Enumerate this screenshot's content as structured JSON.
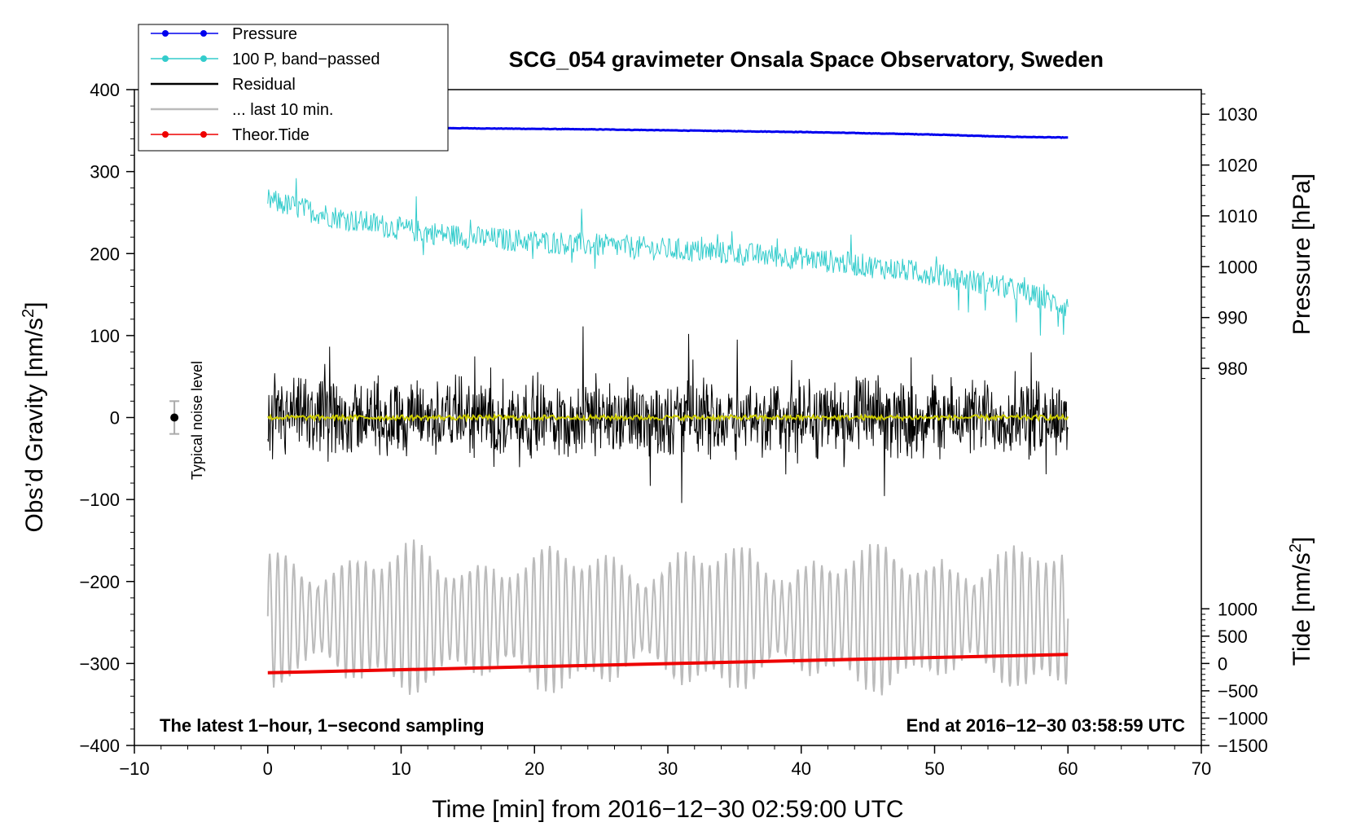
{
  "chart_data": {
    "type": "line",
    "title": "SCG_054 gravimeter Onsala Space Observatory, Sweden",
    "xlabel": "Time [min] from 2016−12−30 02:59:00 UTC",
    "ylabel": "Obs’d Gravity [nm/s²]",
    "ylabel_main": "Obs’d Gravity [nm/s",
    "ylabel_sup": "2",
    "ylabel_end": "]",
    "xlim": [
      -10,
      70
    ],
    "ylim": [
      -400,
      400
    ],
    "x_ticks": [
      -10,
      0,
      10,
      20,
      30,
      40,
      50,
      60,
      70
    ],
    "x_tick_labels": [
      "−10",
      "0",
      "10",
      "20",
      "30",
      "40",
      "50",
      "60",
      "70"
    ],
    "y_ticks": [
      -400,
      -300,
      -200,
      -100,
      0,
      100,
      200,
      300,
      400
    ],
    "y_tick_labels": [
      "−400",
      "−300",
      "−200",
      "−100",
      "0",
      "100",
      "200",
      "300",
      "400"
    ],
    "pressure_axis": {
      "label": "Pressure [hPa]",
      "ticks": [
        980,
        990,
        1000,
        1010,
        1020,
        1030
      ],
      "tick_labels": [
        "980",
        "990",
        "1000",
        "1010",
        "1020",
        "1030"
      ],
      "gravity_at_980": 60,
      "gravity_per_hpa": 6.2
    },
    "tide_axis": {
      "label": "Tide [nm/s²]",
      "label_main": "Tide [nm/s",
      "label_sup": "2",
      "label_end": "]",
      "ticks": [
        -1500,
        -1000,
        -500,
        0,
        500,
        1000
      ],
      "tick_labels": [
        "−1500",
        "−1000",
        "−500",
        "0",
        "500",
        "1000"
      ],
      "gravity_at_minus1500": -400,
      "gravity_per_unit": 0.06667
    },
    "legend": {
      "placement": "top-left",
      "entries": [
        {
          "label": "Pressure",
          "color": "#0000ee",
          "marker": true
        },
        {
          "label": "100 P, band−passed",
          "color": "#33cccc",
          "marker": true
        },
        {
          "label": "Residual",
          "color": "#000000",
          "marker": false
        },
        {
          "label": "... last 10 min.",
          "color": "#bbbbbb",
          "marker": false
        },
        {
          "label": "Theor.Tide",
          "color": "#ee0000",
          "marker": true
        }
      ]
    },
    "annotations": {
      "left_note": "The latest 1−hour, 1−second sampling",
      "right_note": "End at 2016−12−30 03:58:59 UTC",
      "noise_label": "Typical noise level",
      "noise_x": -7,
      "noise_halfwidth": 20
    },
    "series": [
      {
        "name": "Pressure",
        "unit": "hPa",
        "color": "#0000ee",
        "x": [
          0,
          12,
          25,
          40,
          50,
          55,
          60
        ],
        "values": [
          1027.5,
          1027.3,
          1027.0,
          1026.5,
          1026.0,
          1025.6,
          1025.4
        ]
      },
      {
        "name": "100 P, band−passed",
        "unit": "nm/s²",
        "color": "#33cccc",
        "x": [
          0,
          5,
          10,
          15,
          20,
          25,
          30,
          35,
          40,
          45,
          50,
          55,
          60
        ],
        "values": [
          265,
          245,
          230,
          220,
          215,
          210,
          205,
          200,
          195,
          185,
          175,
          160,
          135
        ],
        "noise_amplitude": 18
      },
      {
        "name": "Residual",
        "unit": "nm/s²",
        "color": "#000000",
        "x": [
          0,
          60
        ],
        "values": [
          0,
          0
        ],
        "noise_amplitude": 55,
        "peak_amplitude": 160
      },
      {
        "name": "Residual (smoothed)",
        "unit": "nm/s²",
        "color": "#cccc00",
        "x": [
          0,
          60
        ],
        "values": [
          0,
          0
        ],
        "noise_amplitude": 3
      },
      {
        "name": "Theor.Tide",
        "unit": "nm/s²",
        "color": "#ee0000",
        "x": [
          0,
          60
        ],
        "values": [
          -170,
          165
        ]
      },
      {
        "name": "... last 10 min.",
        "unit": "nm/s²",
        "color": "#bbbbbb",
        "x": [
          0,
          60
        ],
        "values": [
          -245,
          -245
        ],
        "oscillation_amplitude": 55,
        "oscillation_period_min": 0.6
      }
    ]
  }
}
